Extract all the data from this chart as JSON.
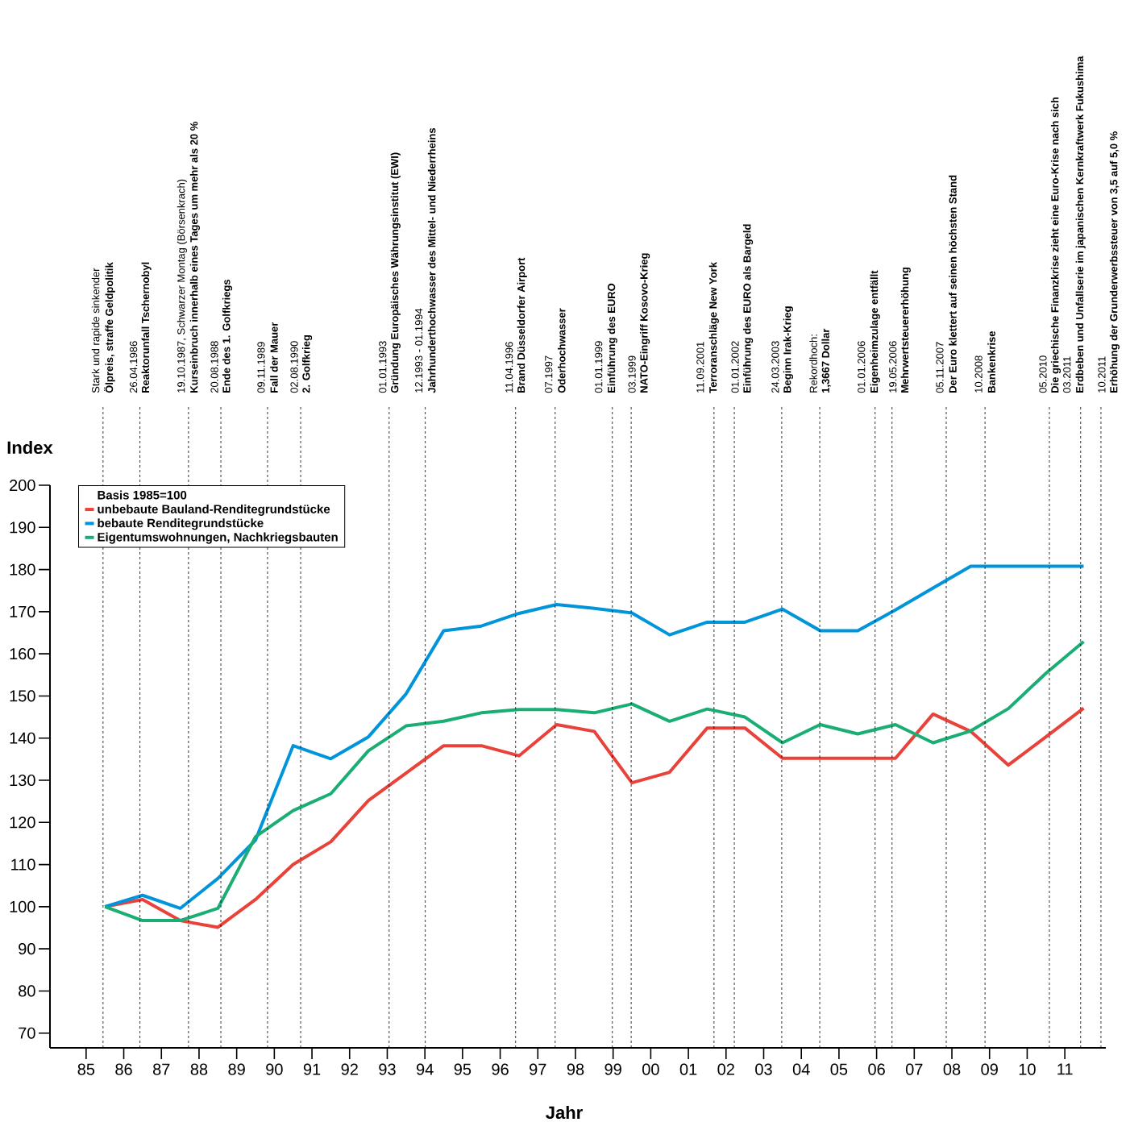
{
  "chart_data": {
    "type": "line",
    "xlabel": "Jahr",
    "ylabel": "Index",
    "legend_title": "Basis 1985=100",
    "x": [
      1985.5,
      1986.5,
      1987.5,
      1988.5,
      1989.5,
      1990.5,
      1991.5,
      1992.5,
      1993.5,
      1994.5,
      1995.5,
      1996.5,
      1997.5,
      1998.5,
      1999.5,
      2000.5,
      2001.5,
      2002.5,
      2003.5,
      2004.5,
      2005.5,
      2006.5,
      2007.5,
      2008.5,
      2009.5,
      2010.5,
      2011.5
    ],
    "series": [
      {
        "name": "unbebaute Bauland-Renditegrundstücke",
        "color": "#e8423a",
        "values": [
          100,
          101.7,
          96.7,
          95.1,
          101.7,
          110.0,
          115.4,
          125.2,
          131.7,
          138.2,
          138.2,
          135.8,
          143.2,
          141.6,
          129.4,
          131.9,
          142.4,
          142.4,
          135.2,
          135.2,
          135.2,
          135.2,
          145.7,
          141.6,
          133.6,
          140.3,
          147.1
        ]
      },
      {
        "name": "bebaute Renditegrundstücke",
        "color": "#0095da",
        "values": [
          100,
          102.7,
          99.6,
          106.7,
          115.8,
          138.2,
          135.1,
          140.3,
          150.5,
          165.5,
          166.6,
          169.6,
          171.7,
          170.8,
          169.7,
          164.5,
          167.5,
          167.5,
          170.6,
          165.5,
          165.5,
          170.4,
          175.6,
          180.8,
          180.8,
          180.8,
          180.8
        ]
      },
      {
        "name": "Eigentumswohnungen, Nachkriegsbauten",
        "color": "#1aae74",
        "values": [
          100,
          96.7,
          96.7,
          99.6,
          116.6,
          122.8,
          126.8,
          137.0,
          142.9,
          144.0,
          146.0,
          146.8,
          146.8,
          146.0,
          148.1,
          144.0,
          146.9,
          145.0,
          138.9,
          143.2,
          141.0,
          143.2,
          138.9,
          141.7,
          147.0,
          155.4,
          162.9
        ]
      }
    ],
    "xlim": [
      1984.04,
      2012.09
    ],
    "ylim": [
      66.5,
      200
    ],
    "xticks": [
      {
        "value": 1985,
        "label": "85"
      },
      {
        "value": 1986,
        "label": "86"
      },
      {
        "value": 1987,
        "label": "87"
      },
      {
        "value": 1988,
        "label": "88"
      },
      {
        "value": 1989,
        "label": "89"
      },
      {
        "value": 1990,
        "label": "90"
      },
      {
        "value": 1991,
        "label": "91"
      },
      {
        "value": 1992,
        "label": "92"
      },
      {
        "value": 1993,
        "label": "93"
      },
      {
        "value": 1994,
        "label": "94"
      },
      {
        "value": 1995,
        "label": "95"
      },
      {
        "value": 1996,
        "label": "96"
      },
      {
        "value": 1997,
        "label": "97"
      },
      {
        "value": 1998,
        "label": "98"
      },
      {
        "value": 1999,
        "label": "99"
      },
      {
        "value": 2000,
        "label": "00"
      },
      {
        "value": 2001,
        "label": "01"
      },
      {
        "value": 2002,
        "label": "02"
      },
      {
        "value": 2003,
        "label": "03"
      },
      {
        "value": 2004,
        "label": "04"
      },
      {
        "value": 2005,
        "label": "05"
      },
      {
        "value": 2006,
        "label": "06"
      },
      {
        "value": 2007,
        "label": "07"
      },
      {
        "value": 2008,
        "label": "08"
      },
      {
        "value": 2009,
        "label": "09"
      },
      {
        "value": 2010,
        "label": "10"
      },
      {
        "value": 2011,
        "label": "11"
      }
    ],
    "yticks": [
      70,
      80,
      90,
      100,
      110,
      120,
      130,
      140,
      150,
      160,
      170,
      180,
      190,
      200
    ],
    "grid": false,
    "legend": "top left",
    "line_style": "solid",
    "ref_lines": [
      {
        "axis": "x",
        "value": 1985.45,
        "label": "Ölpreis, straffe Geldpolitik",
        "line_style": "dashed"
      },
      {
        "axis": "x",
        "value": 1986.43,
        "label": "Reaktorunfall Tschernobyl",
        "line_style": "dashed"
      },
      {
        "axis": "x",
        "value": 1987.72,
        "label": "Kurseinbruch innerhalb eines Tages um mehr als 20 %",
        "line_style": "dashed"
      },
      {
        "axis": "x",
        "value": 1988.58,
        "label": "Ende des 1. Golfkriegs",
        "line_style": "dashed"
      },
      {
        "axis": "x",
        "value": 1989.82,
        "label": "Fall der Mauer",
        "line_style": "dashed"
      },
      {
        "axis": "x",
        "value": 1990.7,
        "label": "2. Golfkrieg",
        "line_style": "dashed"
      },
      {
        "axis": "x",
        "value": 1993.05,
        "label": "Gründung Europäisches Währungsinstitut (EWI)",
        "line_style": "dashed"
      },
      {
        "axis": "x",
        "value": 1994.01,
        "label": "Jahrhunderthochwasser des Mittel- und Niederrheins",
        "line_style": "dashed"
      },
      {
        "axis": "x",
        "value": 1996.41,
        "label": "Brand Düsseldorfer Airport",
        "line_style": "dashed"
      },
      {
        "axis": "x",
        "value": 1997.46,
        "label": "Oderhochwasser",
        "line_style": "dashed"
      },
      {
        "axis": "x",
        "value": 1998.98,
        "label": "Einführung des EURO",
        "line_style": "dashed"
      },
      {
        "axis": "x",
        "value": 1999.48,
        "label": "NATO-Eingriff Kosovo-Krieg",
        "line_style": "dashed"
      },
      {
        "axis": "x",
        "value": 2001.68,
        "label": "Terroranschläge New York",
        "line_style": "dashed"
      },
      {
        "axis": "x",
        "value": 2002.22,
        "label": "Einführung des EURO als Bargeld",
        "line_style": "dashed"
      },
      {
        "axis": "x",
        "value": 2003.48,
        "label": "Beginn Irak-Krieg",
        "line_style": "dashed"
      },
      {
        "axis": "x",
        "value": 2004.49,
        "label": "1,3667 Dollar",
        "line_style": "dashed"
      },
      {
        "axis": "x",
        "value": 2005.96,
        "label": "Eigenheimzulage entfällt",
        "line_style": "dashed"
      },
      {
        "axis": "x",
        "value": 2006.41,
        "label": "Mehrwertsteuererhöhung",
        "line_style": "dashed"
      },
      {
        "axis": "x",
        "value": 2007.85,
        "label": "Der Euro klettert auf seinen höchsten Stand",
        "line_style": "dashed"
      },
      {
        "axis": "x",
        "value": 2008.88,
        "label": "Bankenkrise",
        "line_style": "dashed"
      },
      {
        "axis": "x",
        "value": 2010.59,
        "label": "Die griechische Finanzkrise zieht eine Euro-Krise nach sich",
        "line_style": "dashed"
      },
      {
        "axis": "x",
        "value": 2011.42,
        "label": "Erdbeben und Unfallserie im japanischen Kernkraftwerk Fukushima",
        "line_style": "dashed"
      },
      {
        "axis": "x",
        "value": 2011.96,
        "label": "Erhöhung der Grunderwerbssteuer von 3,5 auf 5,0 %",
        "line_style": "dashed"
      }
    ],
    "annotations": [
      "Stark und rapide sinkender",
      "26.04.1986",
      "19.10.1987, Schwarzer Montag (Börsenkrach)",
      "20.08.1988",
      "09.11.1989",
      "02.08.1990",
      "01.01.1993",
      "12.1993 - 01.1994",
      "11.04.1996",
      "07.1997",
      "01.01.1999",
      "03.1999",
      "11.09.2001",
      "01.01.2002",
      "24.03.2003",
      "Rekordhoch:",
      "01.01.2006",
      "19.05.2006",
      "05.11.2007",
      "10.2008",
      "05.2010",
      "03.2011",
      "10.2011"
    ]
  }
}
